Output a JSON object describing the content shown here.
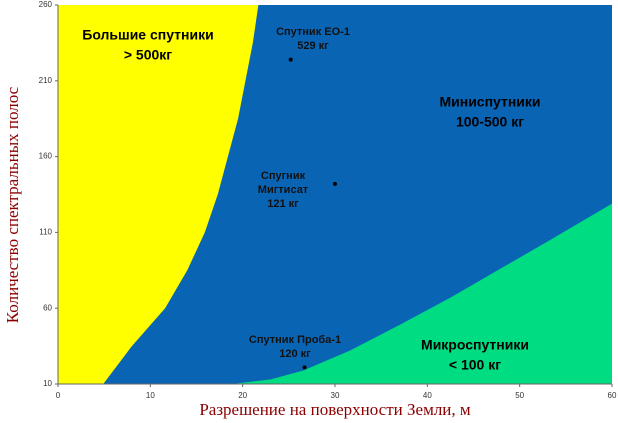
{
  "chart_data": {
    "type": "region",
    "x_label": "Разрешение на поверхности Земли, м",
    "y_label": "Количество спектральных полос",
    "xlim": [
      0,
      60
    ],
    "xticks": [
      0,
      10,
      20,
      30,
      40,
      50,
      60
    ],
    "ylim": [
      10,
      260
    ],
    "yticks": [
      10,
      60,
      110,
      160,
      210,
      260
    ],
    "background": {
      "color": "#0a64b4",
      "label": [
        "Миниспутники",
        "100-500 кг"
      ]
    },
    "regions": [
      {
        "label": [
          "Большие спутники",
          "> 500кг"
        ],
        "color": "#ffff00",
        "side": "left",
        "x": [
          4.9,
          8,
          11.6,
          14,
          15.9,
          17.3,
          18.4,
          19.5,
          20.3,
          21.1,
          21.7
        ],
        "y": [
          10,
          35,
          60,
          85,
          110,
          135,
          160,
          185,
          210,
          235,
          260
        ]
      },
      {
        "label": [
          "Микроспутники",
          "< 100 кг"
        ],
        "color": "#00dc82",
        "side": "right",
        "x": [
          18.8,
          23,
          26.6,
          31.6,
          37,
          42.5,
          47.9,
          53.3,
          60
        ],
        "y": [
          10,
          13,
          19,
          32,
          49,
          67,
          86,
          105,
          129
        ]
      }
    ],
    "points": {
      "color": "#000000",
      "x": [
        25.2,
        30,
        26.7
      ],
      "y": [
        224,
        142,
        21
      ],
      "labels": [
        [
          "Спутник ЕО-1",
          "529 кг"
        ],
        [
          "Спугник",
          "Мигтисат",
          "121 кг"
        ],
        [
          "Спутник Проба-1",
          "120 кг"
        ]
      ]
    }
  }
}
